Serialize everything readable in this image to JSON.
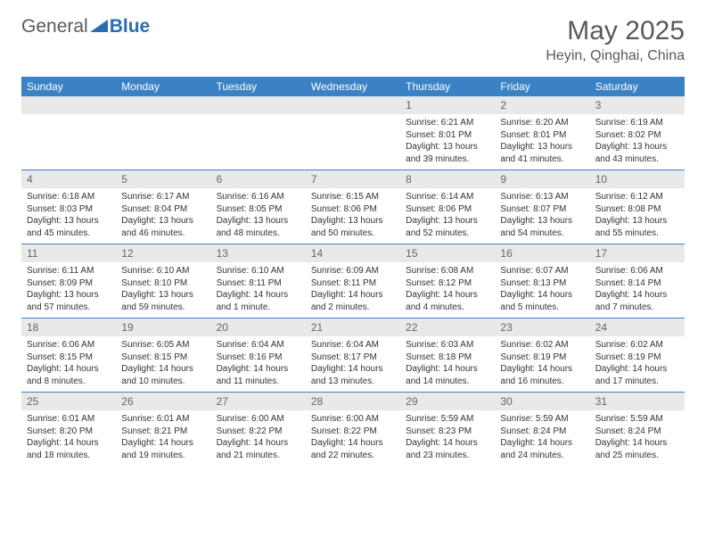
{
  "logo": {
    "text_part1": "General",
    "text_part2": "Blue"
  },
  "header": {
    "month_title": "May 2025",
    "location": "Heyin, Qinghai, China"
  },
  "weekdays": [
    "Sunday",
    "Monday",
    "Tuesday",
    "Wednesday",
    "Thursday",
    "Friday",
    "Saturday"
  ],
  "colors": {
    "header_bg": "#3b82c4",
    "daynum_bg": "#e9e9e9",
    "rule": "#3b82c4"
  },
  "days": [
    {
      "num": "",
      "sunrise": "",
      "sunset": "",
      "daylight": ""
    },
    {
      "num": "",
      "sunrise": "",
      "sunset": "",
      "daylight": ""
    },
    {
      "num": "",
      "sunrise": "",
      "sunset": "",
      "daylight": ""
    },
    {
      "num": "",
      "sunrise": "",
      "sunset": "",
      "daylight": ""
    },
    {
      "num": "1",
      "sunrise": "Sunrise: 6:21 AM",
      "sunset": "Sunset: 8:01 PM",
      "daylight": "Daylight: 13 hours and 39 minutes."
    },
    {
      "num": "2",
      "sunrise": "Sunrise: 6:20 AM",
      "sunset": "Sunset: 8:01 PM",
      "daylight": "Daylight: 13 hours and 41 minutes."
    },
    {
      "num": "3",
      "sunrise": "Sunrise: 6:19 AM",
      "sunset": "Sunset: 8:02 PM",
      "daylight": "Daylight: 13 hours and 43 minutes."
    },
    {
      "num": "4",
      "sunrise": "Sunrise: 6:18 AM",
      "sunset": "Sunset: 8:03 PM",
      "daylight": "Daylight: 13 hours and 45 minutes."
    },
    {
      "num": "5",
      "sunrise": "Sunrise: 6:17 AM",
      "sunset": "Sunset: 8:04 PM",
      "daylight": "Daylight: 13 hours and 46 minutes."
    },
    {
      "num": "6",
      "sunrise": "Sunrise: 6:16 AM",
      "sunset": "Sunset: 8:05 PM",
      "daylight": "Daylight: 13 hours and 48 minutes."
    },
    {
      "num": "7",
      "sunrise": "Sunrise: 6:15 AM",
      "sunset": "Sunset: 8:06 PM",
      "daylight": "Daylight: 13 hours and 50 minutes."
    },
    {
      "num": "8",
      "sunrise": "Sunrise: 6:14 AM",
      "sunset": "Sunset: 8:06 PM",
      "daylight": "Daylight: 13 hours and 52 minutes."
    },
    {
      "num": "9",
      "sunrise": "Sunrise: 6:13 AM",
      "sunset": "Sunset: 8:07 PM",
      "daylight": "Daylight: 13 hours and 54 minutes."
    },
    {
      "num": "10",
      "sunrise": "Sunrise: 6:12 AM",
      "sunset": "Sunset: 8:08 PM",
      "daylight": "Daylight: 13 hours and 55 minutes."
    },
    {
      "num": "11",
      "sunrise": "Sunrise: 6:11 AM",
      "sunset": "Sunset: 8:09 PM",
      "daylight": "Daylight: 13 hours and 57 minutes."
    },
    {
      "num": "12",
      "sunrise": "Sunrise: 6:10 AM",
      "sunset": "Sunset: 8:10 PM",
      "daylight": "Daylight: 13 hours and 59 minutes."
    },
    {
      "num": "13",
      "sunrise": "Sunrise: 6:10 AM",
      "sunset": "Sunset: 8:11 PM",
      "daylight": "Daylight: 14 hours and 1 minute."
    },
    {
      "num": "14",
      "sunrise": "Sunrise: 6:09 AM",
      "sunset": "Sunset: 8:11 PM",
      "daylight": "Daylight: 14 hours and 2 minutes."
    },
    {
      "num": "15",
      "sunrise": "Sunrise: 6:08 AM",
      "sunset": "Sunset: 8:12 PM",
      "daylight": "Daylight: 14 hours and 4 minutes."
    },
    {
      "num": "16",
      "sunrise": "Sunrise: 6:07 AM",
      "sunset": "Sunset: 8:13 PM",
      "daylight": "Daylight: 14 hours and 5 minutes."
    },
    {
      "num": "17",
      "sunrise": "Sunrise: 6:06 AM",
      "sunset": "Sunset: 8:14 PM",
      "daylight": "Daylight: 14 hours and 7 minutes."
    },
    {
      "num": "18",
      "sunrise": "Sunrise: 6:06 AM",
      "sunset": "Sunset: 8:15 PM",
      "daylight": "Daylight: 14 hours and 8 minutes."
    },
    {
      "num": "19",
      "sunrise": "Sunrise: 6:05 AM",
      "sunset": "Sunset: 8:15 PM",
      "daylight": "Daylight: 14 hours and 10 minutes."
    },
    {
      "num": "20",
      "sunrise": "Sunrise: 6:04 AM",
      "sunset": "Sunset: 8:16 PM",
      "daylight": "Daylight: 14 hours and 11 minutes."
    },
    {
      "num": "21",
      "sunrise": "Sunrise: 6:04 AM",
      "sunset": "Sunset: 8:17 PM",
      "daylight": "Daylight: 14 hours and 13 minutes."
    },
    {
      "num": "22",
      "sunrise": "Sunrise: 6:03 AM",
      "sunset": "Sunset: 8:18 PM",
      "daylight": "Daylight: 14 hours and 14 minutes."
    },
    {
      "num": "23",
      "sunrise": "Sunrise: 6:02 AM",
      "sunset": "Sunset: 8:19 PM",
      "daylight": "Daylight: 14 hours and 16 minutes."
    },
    {
      "num": "24",
      "sunrise": "Sunrise: 6:02 AM",
      "sunset": "Sunset: 8:19 PM",
      "daylight": "Daylight: 14 hours and 17 minutes."
    },
    {
      "num": "25",
      "sunrise": "Sunrise: 6:01 AM",
      "sunset": "Sunset: 8:20 PM",
      "daylight": "Daylight: 14 hours and 18 minutes."
    },
    {
      "num": "26",
      "sunrise": "Sunrise: 6:01 AM",
      "sunset": "Sunset: 8:21 PM",
      "daylight": "Daylight: 14 hours and 19 minutes."
    },
    {
      "num": "27",
      "sunrise": "Sunrise: 6:00 AM",
      "sunset": "Sunset: 8:22 PM",
      "daylight": "Daylight: 14 hours and 21 minutes."
    },
    {
      "num": "28",
      "sunrise": "Sunrise: 6:00 AM",
      "sunset": "Sunset: 8:22 PM",
      "daylight": "Daylight: 14 hours and 22 minutes."
    },
    {
      "num": "29",
      "sunrise": "Sunrise: 5:59 AM",
      "sunset": "Sunset: 8:23 PM",
      "daylight": "Daylight: 14 hours and 23 minutes."
    },
    {
      "num": "30",
      "sunrise": "Sunrise: 5:59 AM",
      "sunset": "Sunset: 8:24 PM",
      "daylight": "Daylight: 14 hours and 24 minutes."
    },
    {
      "num": "31",
      "sunrise": "Sunrise: 5:59 AM",
      "sunset": "Sunset: 8:24 PM",
      "daylight": "Daylight: 14 hours and 25 minutes."
    }
  ]
}
